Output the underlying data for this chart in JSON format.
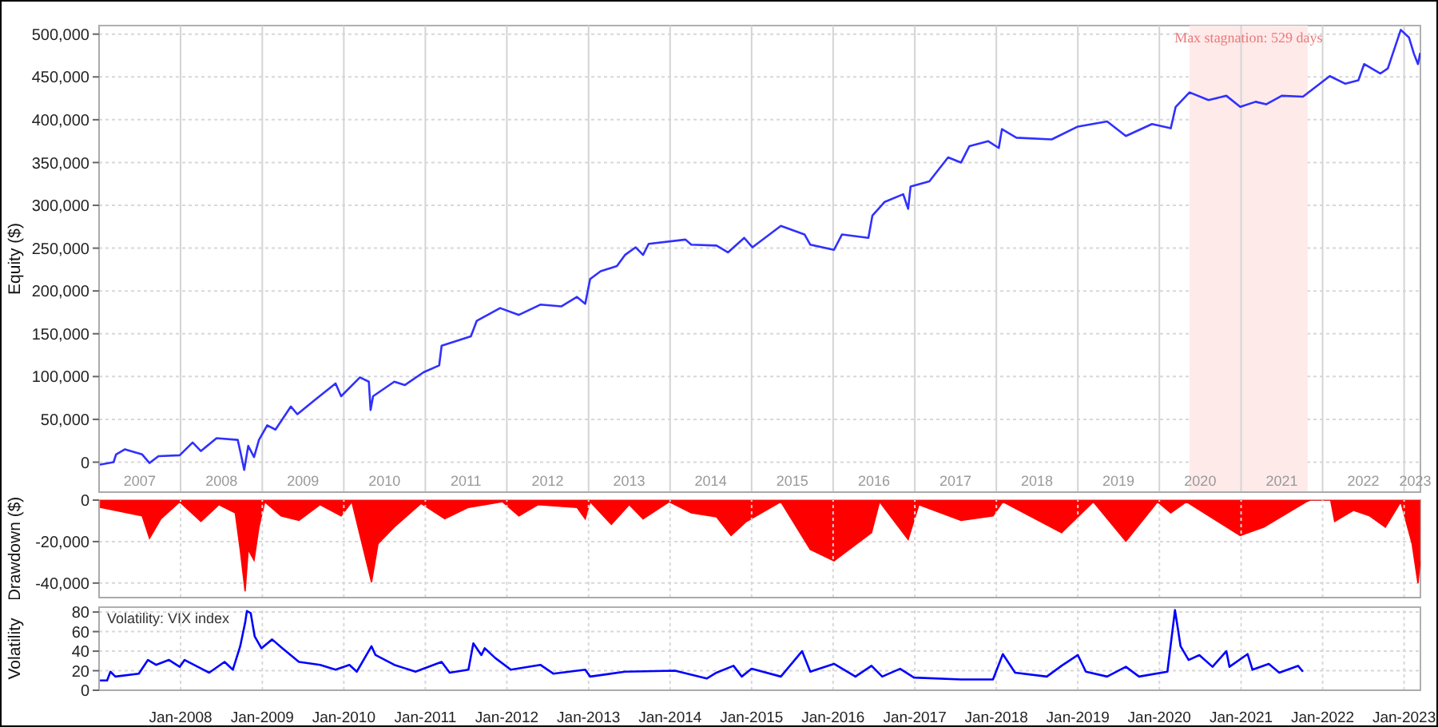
{
  "chart_data": [
    {
      "type": "line",
      "ylabel": "Equity ($)",
      "xlim": [
        "2007-01-01",
        "2023-03-15"
      ],
      "ylim": [
        -35000,
        510000
      ],
      "yticks": [
        0,
        {
          "value": 50000,
          "label": "50,000"
        },
        {
          "value": 100000,
          "label": "100,000"
        },
        {
          "value": 150000,
          "label": "150,000"
        },
        {
          "value": 200000,
          "label": "200,000"
        },
        {
          "value": 250000,
          "label": "250,000"
        },
        {
          "value": 300000,
          "label": "300,000"
        },
        {
          "value": 350000,
          "label": "350,000"
        },
        {
          "value": 400000,
          "label": "400,000"
        },
        {
          "value": 450000,
          "label": "450,000"
        },
        {
          "value": 500000,
          "label": "500,000"
        }
      ],
      "xticks": [
        {
          "value": "2007-07-02",
          "label": "2007"
        },
        {
          "value": "2008-07-02",
          "label": "2008"
        },
        {
          "value": "2009-07-02",
          "label": "2009"
        },
        {
          "value": "2010-07-02",
          "label": "2010"
        },
        {
          "value": "2011-07-02",
          "label": "2011"
        },
        {
          "value": "2012-07-02",
          "label": "2012"
        },
        {
          "value": "2013-07-02",
          "label": "2013"
        },
        {
          "value": "2014-07-02",
          "label": "2014"
        },
        {
          "value": "2015-07-02",
          "label": "2015"
        },
        {
          "value": "2016-07-02",
          "label": "2016"
        },
        {
          "value": "2017-07-02",
          "label": "2017"
        },
        {
          "value": "2018-07-02",
          "label": "2018"
        },
        {
          "value": "2019-07-02",
          "label": "2019"
        },
        {
          "value": "2020-07-02",
          "label": "2020"
        },
        {
          "value": "2021-07-02",
          "label": "2021"
        },
        {
          "value": "2022-07-02",
          "label": "2022"
        },
        {
          "value": "2023-02-20",
          "label": "2023"
        },
        {
          "value": "2008-01-01",
          "label": null
        },
        {
          "value": "2009-01-01",
          "label": null
        },
        {
          "value": "2010-01-01",
          "label": null
        },
        {
          "value": "2011-01-01",
          "label": null
        },
        {
          "value": "2012-01-01",
          "label": null
        },
        {
          "value": "2013-01-01",
          "label": null
        },
        {
          "value": "2014-01-01",
          "label": null
        },
        {
          "value": "2015-01-01",
          "label": null
        },
        {
          "value": "2016-01-01",
          "label": null
        },
        {
          "value": "2017-01-01",
          "label": null
        },
        {
          "value": "2018-01-01",
          "label": null
        },
        {
          "value": "2019-01-01",
          "label": null
        },
        {
          "value": "2020-01-01",
          "label": null
        },
        {
          "value": "2021-01-01",
          "label": null
        },
        {
          "value": "2022-01-01",
          "label": null
        },
        {
          "value": "2023-01-01",
          "label": null
        }
      ],
      "grid": true,
      "bands": [
        {
          "axis": "x",
          "from": "2020-05-15",
          "to": "2021-10-26",
          "label": "Max stagnation: 529 days",
          "color": "#ffeaea"
        }
      ],
      "series": [
        {
          "color": "#3030ff",
          "x": [
            "2007-01-01",
            "2007-03-07",
            "2007-03-18",
            "2007-04-27",
            "2007-07-13",
            "2007-08-15",
            "2007-09-24",
            "2007-12-28",
            "2008-02-24",
            "2008-04-01",
            "2008-06-10",
            "2008-09-13",
            "2008-09-24",
            "2008-10-12",
            "2008-10-30",
            "2008-11-25",
            "2008-12-17",
            "2009-01-23",
            "2009-03-01",
            "2009-05-09",
            "2009-06-07",
            "2009-08-26",
            "2009-11-25",
            "2009-12-20",
            "2010-03-14",
            "2010-04-23",
            "2010-05-01",
            "2010-05-12",
            "2010-08-15",
            "2010-10-01",
            "2010-12-24",
            "2011-03-04",
            "2011-03-15",
            "2011-07-24",
            "2011-08-19",
            "2011-12-02",
            "2012-02-24",
            "2012-05-30",
            "2012-09-02",
            "2012-11-10",
            "2012-12-17",
            "2013-01-08",
            "2013-02-24",
            "2013-05-08",
            "2013-06-13",
            "2013-07-31",
            "2013-09-02",
            "2013-09-27",
            "2014-03-11",
            "2014-04-06",
            "2014-07-28",
            "2014-09-17",
            "2014-11-29",
            "2015-01-05",
            "2015-05-12",
            "2015-08-26",
            "2015-09-21",
            "2016-01-05",
            "2016-02-10",
            "2016-06-07",
            "2016-06-25",
            "2016-08-19",
            "2016-11-10",
            "2016-12-02",
            "2016-12-13",
            "2017-03-07",
            "2017-05-30",
            "2017-07-27",
            "2017-09-02",
            "2017-11-25",
            "2018-01-12",
            "2018-01-26",
            "2018-04-01",
            "2018-09-06",
            "2019-01-01",
            "2019-05-12",
            "2019-08-04",
            "2019-11-29",
            "2020-02-21",
            "2020-03-14",
            "2020-05-15",
            "2020-08-08",
            "2020-10-27",
            "2020-12-28",
            "2021-03-07",
            "2021-04-23",
            "2021-07-02",
            "2021-10-05",
            "2022-02-02",
            "2022-04-13",
            "2022-06-10",
            "2022-07-06",
            "2022-09-17",
            "2022-10-20",
            "2022-12-17",
            "2023-01-23",
            "2023-02-14",
            "2023-03-04",
            "2023-03-14"
          ],
          "values": [
            -3000,
            0,
            9000,
            15000,
            9000,
            -1000,
            7000,
            8000,
            23000,
            13000,
            28000,
            26000,
            13000,
            -9000,
            19000,
            6000,
            26000,
            43000,
            38000,
            65000,
            56000,
            73000,
            92000,
            77000,
            99000,
            94000,
            61000,
            77000,
            94000,
            90000,
            105000,
            113000,
            136000,
            147000,
            165000,
            180000,
            172000,
            184000,
            182000,
            193000,
            185000,
            214000,
            223000,
            229000,
            242000,
            251000,
            242000,
            255000,
            260000,
            254000,
            253000,
            245000,
            262000,
            251000,
            276000,
            266000,
            254000,
            248000,
            266000,
            262000,
            288000,
            304000,
            313000,
            296000,
            322000,
            328000,
            356000,
            350000,
            369000,
            375000,
            367000,
            389000,
            379000,
            377000,
            392000,
            398000,
            381000,
            395000,
            390000,
            415000,
            432000,
            423000,
            428000,
            415000,
            421000,
            418000,
            428000,
            427000,
            451000,
            442000,
            446000,
            465000,
            454000,
            460000,
            505000,
            496000,
            477000,
            465000,
            478000
          ]
        }
      ]
    },
    {
      "type": "area",
      "ylabel": "Drawdown ($)",
      "xlim": [
        "2007-01-01",
        "2023-03-15"
      ],
      "ylim": [
        -47000,
        0
      ],
      "yticks": [
        0,
        {
          "value": -20000,
          "label": "-20,000"
        },
        {
          "value": -40000,
          "label": "-40,000"
        }
      ],
      "tick_labels": "y",
      "grid": true,
      "xticks": [
        {
          "value": "2008-01-01",
          "label": null
        },
        {
          "value": "2009-01-01",
          "label": null
        },
        {
          "value": "2010-01-01",
          "label": null
        },
        {
          "value": "2011-01-01",
          "label": null
        },
        {
          "value": "2012-01-01",
          "label": null
        },
        {
          "value": "2013-01-01",
          "label": null
        },
        {
          "value": "2014-01-01",
          "label": null
        },
        {
          "value": "2015-01-01",
          "label": null
        },
        {
          "value": "2016-01-01",
          "label": null
        },
        {
          "value": "2017-01-01",
          "label": null
        },
        {
          "value": "2018-01-01",
          "label": null
        },
        {
          "value": "2019-01-01",
          "label": null
        },
        {
          "value": "2020-01-01",
          "label": null
        },
        {
          "value": "2021-01-01",
          "label": null
        },
        {
          "value": "2022-01-01",
          "label": null
        },
        {
          "value": "2023-01-01",
          "label": null
        }
      ],
      "series": [
        {
          "color": "#ff0000",
          "x": [
            "2007-01-05",
            "2007-07-13",
            "2007-08-15",
            "2007-10-05",
            "2007-12-28",
            "2008-04-01",
            "2008-06-21",
            "2008-09-02",
            "2008-09-24",
            "2008-10-16",
            "2008-10-30",
            "2008-11-25",
            "2008-12-17",
            "2009-01-12",
            "2009-03-26",
            "2009-06-14",
            "2009-09-17",
            "2009-12-20",
            "2010-02-06",
            "2010-05-05",
            "2010-06-03",
            "2010-08-15",
            "2010-12-13",
            "2011-03-29",
            "2011-07-13",
            "2011-12-13",
            "2012-02-24",
            "2012-05-19",
            "2012-11-10",
            "2012-12-17",
            "2013-01-08",
            "2013-04-13",
            "2013-07-02",
            "2013-09-02",
            "2013-12-28",
            "2014-04-06",
            "2014-07-28",
            "2014-10-01",
            "2014-12-09",
            "2015-05-12",
            "2015-09-21",
            "2016-01-05",
            "2016-06-21",
            "2016-07-27",
            "2016-12-02",
            "2017-01-19",
            "2017-07-27",
            "2017-12-17",
            "2018-01-30",
            "2018-10-20",
            "2019-03-11",
            "2019-08-04",
            "2019-12-24",
            "2020-02-21",
            "2020-05-01",
            "2020-12-28",
            "2021-04-13",
            "2021-10-20",
            "2021-11-07",
            "2022-02-06",
            "2022-02-24",
            "2022-05-19",
            "2022-07-31",
            "2022-10-09",
            "2022-12-17",
            "2023-02-06",
            "2023-03-04",
            "2023-03-14"
          ],
          "values": [
            -3500,
            -7600,
            -18400,
            -9000,
            -800,
            -10300,
            -2200,
            -6200,
            -23800,
            -44000,
            -23800,
            -29000,
            -13000,
            -800,
            -7600,
            -9800,
            -2200,
            -7600,
            -800,
            -39600,
            -21100,
            -13000,
            -1600,
            -9000,
            -3500,
            -800,
            -7600,
            -2200,
            -3500,
            -9000,
            -800,
            -11700,
            -2200,
            -9000,
            -800,
            -6200,
            -8100,
            -17100,
            -10300,
            -800,
            -23800,
            -29300,
            -15700,
            -800,
            -19000,
            -2200,
            -9800,
            -7600,
            -800,
            -15700,
            -800,
            -19800,
            -800,
            -6200,
            -800,
            -17100,
            -13000,
            -800,
            0,
            0,
            -10300,
            -4900,
            -7600,
            -13000,
            -800,
            -21100,
            -40100,
            -29300
          ]
        }
      ]
    },
    {
      "type": "line",
      "ylabel": "Volatility",
      "xlim": [
        "2007-01-01",
        "2023-03-15"
      ],
      "ylim": [
        0,
        85
      ],
      "yticks": [
        0,
        20,
        40,
        60,
        80
      ],
      "grid": true,
      "annotations": [
        "Volatility: VIX index"
      ],
      "xticks": [
        {
          "value": "2008-01-01",
          "label": "Jan-2008"
        },
        {
          "value": "2009-01-01",
          "label": "Jan-2009"
        },
        {
          "value": "2010-01-01",
          "label": "Jan-2010"
        },
        {
          "value": "2011-01-01",
          "label": "Jan-2011"
        },
        {
          "value": "2012-01-01",
          "label": "Jan-2012"
        },
        {
          "value": "2013-01-01",
          "label": "Jan-2013"
        },
        {
          "value": "2014-01-01",
          "label": "Jan-2014"
        },
        {
          "value": "2015-01-01",
          "label": "Jan-2015"
        },
        {
          "value": "2016-01-01",
          "label": "Jan-2016"
        },
        {
          "value": "2017-01-01",
          "label": "Jan-2017"
        },
        {
          "value": "2018-01-01",
          "label": "Jan-2018"
        },
        {
          "value": "2019-01-01",
          "label": "Jan-2019"
        },
        {
          "value": "2020-01-01",
          "label": "Jan-2020"
        },
        {
          "value": "2021-01-01",
          "label": "Jan-2021"
        },
        {
          "value": "2022-01-01",
          "label": "Jan-2022"
        },
        {
          "value": "2023-01-01",
          "label": "Jan-2023"
        }
      ],
      "series": [
        {
          "color": "#0000ff",
          "x": [
            "2007-01-05",
            "2007-02-06",
            "2007-02-21",
            "2007-03-15",
            "2007-06-28",
            "2007-08-08",
            "2007-09-13",
            "2007-11-10",
            "2007-12-28",
            "2008-01-19",
            "2008-04-13",
            "2008-05-08",
            "2008-07-16",
            "2008-08-22",
            "2008-09-24",
            "2008-10-16",
            "2008-10-24",
            "2008-11-10",
            "2008-11-28",
            "2008-12-28",
            "2009-02-14",
            "2009-04-01",
            "2009-06-14",
            "2009-09-17",
            "2009-11-25",
            "2010-01-26",
            "2010-02-28",
            "2010-05-05",
            "2010-05-23",
            "2010-08-15",
            "2010-11-18",
            "2011-03-15",
            "2011-04-20",
            "2011-07-13",
            "2011-08-04",
            "2011-09-09",
            "2011-09-24",
            "2011-11-10",
            "2012-01-19",
            "2012-05-30",
            "2012-07-27",
            "2012-12-17",
            "2013-01-08",
            "2013-06-13",
            "2014-01-23",
            "2014-06-14",
            "2014-07-28",
            "2014-10-12",
            "2014-11-18",
            "2015-01-01",
            "2015-05-12",
            "2015-08-15",
            "2015-09-21",
            "2016-01-05",
            "2016-04-10",
            "2016-06-21",
            "2016-08-08",
            "2016-10-27",
            "2016-12-28",
            "2017-07-27",
            "2017-12-17",
            "2018-01-30",
            "2018-03-26",
            "2018-08-15",
            "2018-10-20",
            "2019-01-01",
            "2019-02-06",
            "2019-05-12",
            "2019-08-04",
            "2019-10-02",
            "2020-02-06",
            "2020-03-11",
            "2020-04-05",
            "2020-05-11",
            "2020-06-28",
            "2020-08-26",
            "2020-10-27",
            "2020-11-10",
            "2021-01-30",
            "2021-02-21",
            "2021-05-05",
            "2021-06-21",
            "2021-09-13",
            "2021-10-05"
          ],
          "values": [
            10,
            10,
            19,
            14,
            17,
            31,
            26,
            31,
            24,
            31,
            21,
            18,
            29,
            21,
            45,
            69,
            81,
            79,
            55,
            43,
            52,
            43,
            29,
            26,
            21,
            26,
            19,
            45,
            36,
            26,
            19,
            29,
            18,
            21,
            48,
            36,
            43,
            33,
            21,
            26,
            17,
            21,
            14,
            19,
            20,
            12,
            18,
            25,
            14,
            22,
            14,
            40,
            19,
            27,
            14,
            25,
            14,
            22,
            13,
            11,
            11,
            37,
            18,
            14,
            25,
            36,
            19,
            14,
            24,
            14,
            19,
            82,
            45,
            31,
            36,
            24,
            40,
            24,
            37,
            21,
            27,
            18,
            25,
            19
          ]
        }
      ]
    }
  ]
}
